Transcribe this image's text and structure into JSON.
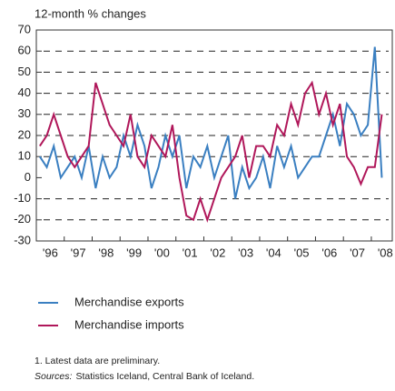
{
  "chart_data": {
    "type": "line",
    "title": "12-month % changes",
    "categories": [
      "'96",
      null,
      null,
      null,
      "'97",
      null,
      null,
      null,
      "'98",
      null,
      null,
      null,
      "'99",
      null,
      null,
      null,
      "'00",
      null,
      null,
      null,
      "'01",
      null,
      null,
      null,
      "'02",
      null,
      null,
      null,
      "'03",
      null,
      null,
      null,
      "'04",
      null,
      null,
      null,
      "'05",
      null,
      null,
      null,
      "'06",
      null,
      null,
      null,
      "'07",
      null,
      null,
      null,
      "'08",
      null
    ],
    "series": [
      {
        "name": "Merchandise exports",
        "color": "#3a7fc1",
        "values": [
          10,
          5,
          15,
          0,
          5,
          10,
          0,
          15,
          -5,
          10,
          0,
          5,
          20,
          10,
          25,
          15,
          -5,
          5,
          20,
          10,
          20,
          -5,
          10,
          5,
          15,
          0,
          10,
          20,
          -10,
          5,
          -5,
          0,
          10,
          -5,
          15,
          5,
          15,
          0,
          5,
          10,
          10,
          20,
          30,
          15,
          35,
          30,
          20,
          25,
          62,
          0
        ]
      },
      {
        "name": "Merchandise imports",
        "color": "#b0175a",
        "values": [
          15,
          20,
          30,
          20,
          10,
          5,
          10,
          15,
          45,
          35,
          25,
          20,
          15,
          30,
          10,
          5,
          20,
          15,
          10,
          25,
          0,
          -18,
          -20,
          -10,
          -20,
          -10,
          0,
          5,
          10,
          20,
          0,
          15,
          15,
          10,
          25,
          20,
          35,
          25,
          40,
          45,
          30,
          40,
          25,
          35,
          10,
          5,
          -3,
          5,
          5,
          30
        ]
      }
    ],
    "ylim": [
      -30,
      70
    ],
    "yticks": [
      -30,
      -20,
      -10,
      0,
      10,
      20,
      30,
      40,
      50,
      60,
      70
    ],
    "grid": true,
    "notes": {
      "footnote": "1. Latest data are preliminary.",
      "sources_label": "Sources:",
      "sources": "Statistics Iceland, Central Bank of Iceland."
    }
  }
}
